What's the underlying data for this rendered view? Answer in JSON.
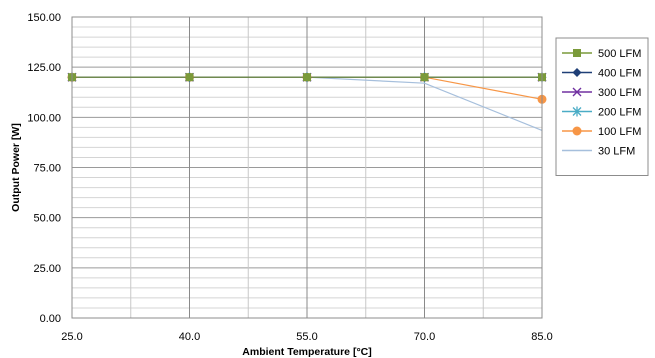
{
  "chart_data": {
    "type": "line",
    "title": "",
    "xlabel": "Ambient Temperature [°C]",
    "ylabel": "Output Power [W]",
    "x": [
      25,
      40,
      55,
      70,
      85
    ],
    "x_tick_labels": [
      "25.0",
      "40.0",
      "55.0",
      "70.0",
      "85.0"
    ],
    "y_tick_labels": [
      "0.00",
      "25.00",
      "50.00",
      "75.00",
      "100.00",
      "125.00",
      "150.00"
    ],
    "xlim": [
      25,
      85
    ],
    "ylim": [
      0,
      150
    ],
    "grid": true,
    "legend_position": "right",
    "series": [
      {
        "name": "500 LFM",
        "values": [
          120,
          120,
          120,
          120,
          120
        ],
        "color": "#7a9a3a",
        "marker": "square"
      },
      {
        "name": "400 LFM",
        "values": [
          120,
          120,
          120,
          120,
          120
        ],
        "color": "#1f3f77",
        "marker": "diamond"
      },
      {
        "name": "300 LFM",
        "values": [
          120,
          120,
          120,
          120,
          120
        ],
        "color": "#7030a0",
        "marker": "x"
      },
      {
        "name": "200 LFM",
        "values": [
          120,
          120,
          120,
          120,
          120
        ],
        "color": "#4aacc6",
        "marker": "star"
      },
      {
        "name": "100 LFM",
        "values": [
          120,
          120,
          120,
          120,
          109
        ],
        "color": "#f79646",
        "marker": "circle"
      },
      {
        "name": "30 LFM",
        "values": [
          120,
          120,
          120,
          117,
          93.5
        ],
        "color": "#a6bfdc",
        "marker": "none"
      }
    ]
  }
}
